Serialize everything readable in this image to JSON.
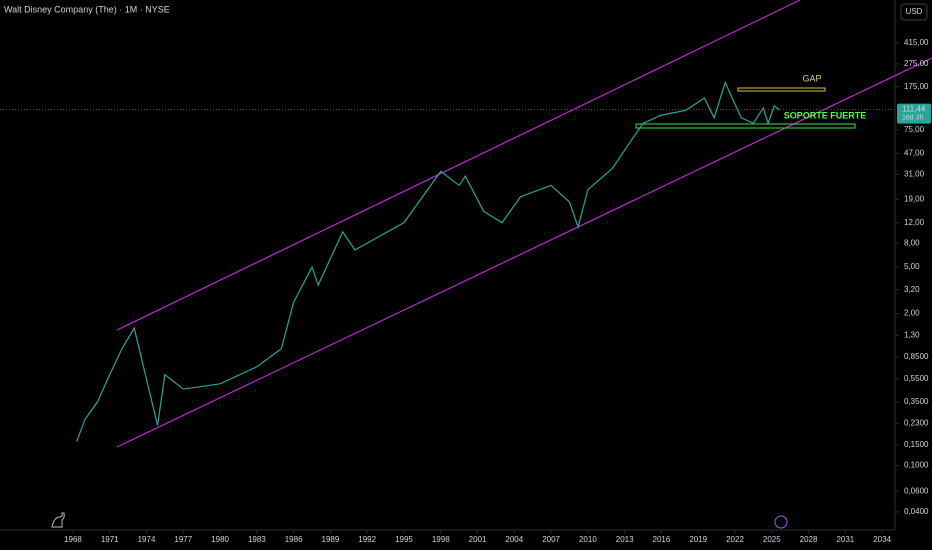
{
  "chart_data": {
    "type": "line",
    "title": "Walt Disney Company (The) · 1M · NYSE",
    "currency": "USD",
    "log_scale": true,
    "grid": false,
    "x": [
      1968.3,
      1969,
      1970,
      1971,
      1972,
      1973,
      1974.9,
      1975.5,
      1977,
      1980,
      1983,
      1985,
      1986,
      1987.5,
      1988,
      1990,
      1991,
      1995,
      1998,
      1999.5,
      2000,
      2001.5,
      2003,
      2004.5,
      2007,
      2008.5,
      2009.2,
      2010,
      2012,
      2013.5,
      2014.5,
      2016,
      2018,
      2019.5,
      2020.3,
      2021.2,
      2022.5,
      2023.5,
      2024.3,
      2024.7,
      2025.2,
      2025.6
    ],
    "series": [
      {
        "color": "#26a69a",
        "values": [
          0.16,
          0.25,
          0.35,
          0.6,
          1.0,
          1.5,
          0.22,
          0.6,
          0.45,
          0.5,
          0.7,
          1.0,
          2.5,
          5,
          3.5,
          10,
          7,
          12,
          33,
          25,
          30,
          15,
          12,
          20,
          25,
          18,
          11,
          23,
          35,
          60,
          85,
          100,
          110,
          140,
          95,
          190,
          95,
          85,
          115,
          85,
          120,
          111.44
        ]
      }
    ],
    "xlim": [
      1962.05,
      2035.05
    ],
    "xticks": [
      1968,
      1971,
      1974,
      1977,
      1980,
      1983,
      1986,
      1989,
      1992,
      1995,
      1998,
      2001,
      2004,
      2007,
      2010,
      2013,
      2016,
      2019,
      2022,
      2025,
      2028,
      2031,
      2034
    ],
    "ylim": [
      0.028,
      968
    ],
    "yticks": [
      {
        "value": 415,
        "label": "415,00"
      },
      {
        "value": 275,
        "label": "275,00"
      },
      {
        "value": 175,
        "label": "175,00"
      },
      {
        "value": 75,
        "label": "75,00"
      },
      {
        "value": 47,
        "label": "47,00"
      },
      {
        "value": 31,
        "label": "31,00"
      },
      {
        "value": 19,
        "label": "19,00"
      },
      {
        "value": 12,
        "label": "12,00"
      },
      {
        "value": 8,
        "label": "8,00"
      },
      {
        "value": 5,
        "label": "5,00"
      },
      {
        "value": 3.2,
        "label": "3,20"
      },
      {
        "value": 2,
        "label": "2,00"
      },
      {
        "value": 1.3,
        "label": "1,30"
      },
      {
        "value": 0.85,
        "label": "0,8500"
      },
      {
        "value": 0.55,
        "label": "0,5500"
      },
      {
        "value": 0.35,
        "label": "0,3500"
      },
      {
        "value": 0.23,
        "label": "0,2300"
      },
      {
        "value": 0.15,
        "label": "0,1500"
      },
      {
        "value": 0.1,
        "label": "0,1000"
      },
      {
        "value": 0.06,
        "label": "0,0600"
      },
      {
        "value": 0.04,
        "label": "0,0400"
      }
    ],
    "last_price": {
      "value": 111.44,
      "label": "111,44"
    },
    "countdown": "16d 3h",
    "annotations": [
      "GAP",
      "SOPORTE FUERTE"
    ]
  }
}
